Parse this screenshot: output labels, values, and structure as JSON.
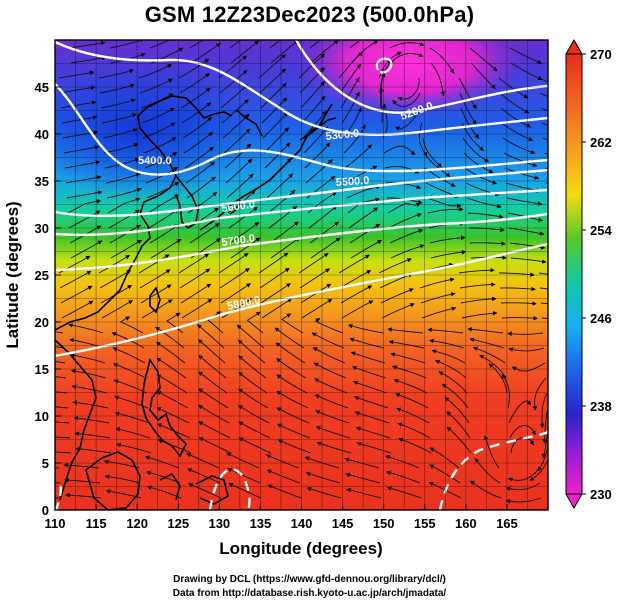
{
  "title": "GSM 12Z23Dec2023 (500.0hPa)",
  "xaxis": {
    "label": "Longitude (degrees)",
    "ticks": [
      "110",
      "115",
      "120",
      "125",
      "130",
      "135",
      "140",
      "145",
      "150",
      "155",
      "160",
      "165"
    ]
  },
  "yaxis": {
    "label": "Latitude  (degrees)",
    "ticks": [
      "0",
      "5",
      "10",
      "15",
      "20",
      "25",
      "30",
      "35",
      "40",
      "45"
    ]
  },
  "colorbar": {
    "labels": [
      "270",
      "262",
      "254",
      "246",
      "238",
      "230"
    ]
  },
  "contours": {
    "labels": [
      "5400.0",
      "5300.0",
      "5200.0",
      "5500.0",
      "5600.0",
      "5700.0",
      "5800.0"
    ]
  },
  "credits": {
    "line1": "Drawing by DCL (https://www.gfd-dennou.org/library/dcl/)",
    "line2": "Data from http://database.rish.kyoto-u.ac.jp/arch/jmadata/"
  },
  "colors": {
    "purple": "#e020d0",
    "blue": "#1030e0",
    "cyan": "#10c8e8",
    "green": "#30c020",
    "yellow": "#f0e000",
    "orange": "#f09020",
    "red": "#f03020"
  }
}
